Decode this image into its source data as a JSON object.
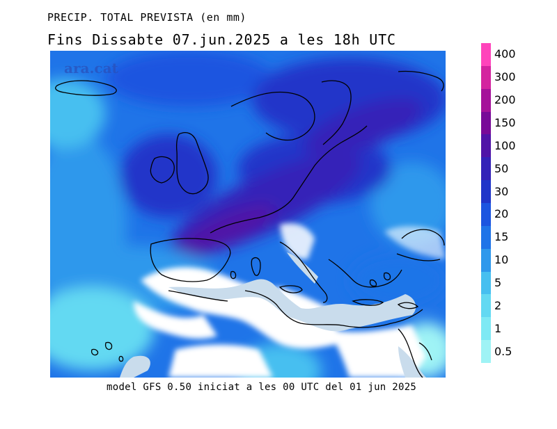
{
  "header": {
    "title": "PRECIP. TOTAL PREVISTA (en mm)",
    "subtitle": "Fins Dissabte  07.jun.2025 a les 18h UTC"
  },
  "watermark": "ara.cat",
  "footer": "model GFS 0.50 iniciat a les 00 UTC del 01 jun 2025",
  "legend": {
    "levels": [
      {
        "label": "0.5",
        "color": "#9ff3f5"
      },
      {
        "label": "1",
        "color": "#7ee9f4"
      },
      {
        "label": "2",
        "color": "#63d9f2"
      },
      {
        "label": "5",
        "color": "#46bff0"
      },
      {
        "label": "10",
        "color": "#2e98ec"
      },
      {
        "label": "15",
        "color": "#1f74e8"
      },
      {
        "label": "20",
        "color": "#1c55e0"
      },
      {
        "label": "30",
        "color": "#2036c9"
      },
      {
        "label": "50",
        "color": "#3422b8"
      },
      {
        "label": "100",
        "color": "#5014a7"
      },
      {
        "label": "150",
        "color": "#780a98"
      },
      {
        "label": "200",
        "color": "#a5129a"
      },
      {
        "label": "300",
        "color": "#d4249f"
      },
      {
        "label": "400",
        "color": "#ff44bb"
      }
    ]
  },
  "colors": {
    "no_precip_land": "#ffffff",
    "sea_no_precip": "#c9dcec",
    "coastline": "#000000"
  }
}
